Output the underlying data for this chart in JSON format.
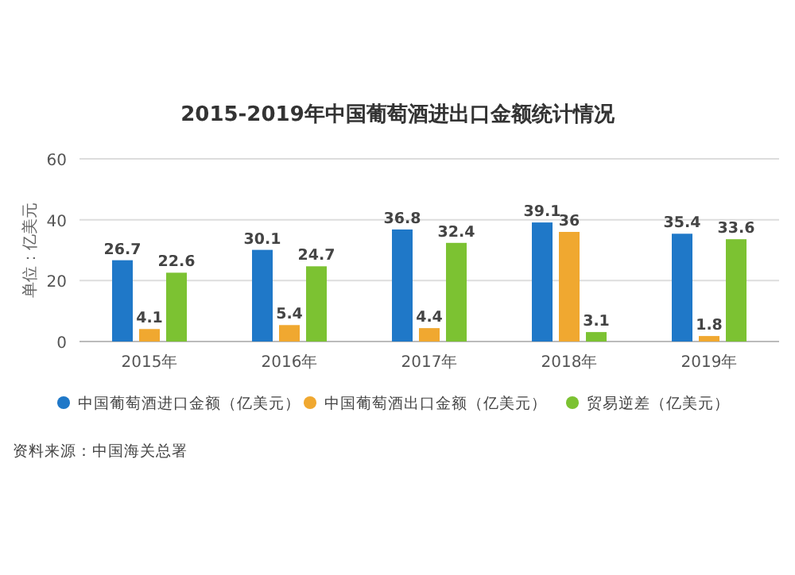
{
  "chart_data": {
    "type": "bar",
    "title": "2015-2019年中国葡萄酒进出口金额统计情况",
    "ylabel": "单位：亿美元",
    "categories": [
      "2015年",
      "2016年",
      "2017年",
      "2018年",
      "2019年"
    ],
    "series": [
      {
        "name": "中国葡萄酒进口金额（亿美元）",
        "color": "#1f78c8",
        "values": [
          26.7,
          30.1,
          36.8,
          39.1,
          35.4
        ]
      },
      {
        "name": "中国葡萄酒出口金额（亿美元）",
        "color": "#f0a830",
        "values": [
          4.1,
          5.4,
          4.4,
          36,
          1.8
        ]
      },
      {
        "name": "贸易逆差（亿美元）",
        "color": "#7cc232",
        "values": [
          22.6,
          24.7,
          32.4,
          3.1,
          33.6
        ]
      }
    ],
    "ylim": [
      0,
      60
    ],
    "yticks": [
      0,
      20,
      40,
      60
    ],
    "grid": "y",
    "legend": "bottom",
    "data_labels": true,
    "annotations": [
      "资料来源：中国海关总署"
    ]
  }
}
